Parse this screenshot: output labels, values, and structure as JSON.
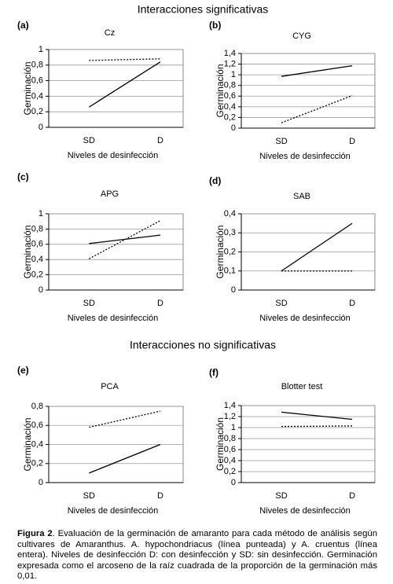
{
  "headings": [
    "Interacciones significativas",
    "Interacciones no significativas"
  ],
  "caption": {
    "label": "Figura 2",
    "text": ". Evaluación de la germinación de amaranto para cada método de análisis según cultivares de Amaranthus. A. hypochondriacus (línea punteada) y A. cruentus (línea entera). Niveles de desinfección D: con desinfección y SD: sin desinfección. Germinación expresada como el arcoseno de la raíz cuadrada de la  proporción de la germinación más 0,01."
  },
  "chart_data": [
    {
      "type": "line",
      "label": "(a)",
      "title": "Cz",
      "xlabel": "Niveles de desinfección",
      "ylabel": "Germinación",
      "categories": [
        "SD",
        "D"
      ],
      "grid": true,
      "ylim": [
        0,
        1
      ],
      "yticks": [
        0,
        {
          "value": 0.2,
          "label": "0,2"
        },
        {
          "value": 0.4,
          "label": "0,4"
        },
        {
          "value": 0.6,
          "label": "0,6"
        },
        {
          "value": 0.8,
          "label": "0,8"
        },
        1
      ],
      "series": [
        {
          "dash": "dotted",
          "color": "#000000",
          "values": [
            0.86,
            0.88
          ]
        },
        {
          "dash": "solid",
          "color": "#000000",
          "values": [
            0.26,
            0.84
          ]
        }
      ]
    },
    {
      "type": "line",
      "label": "(b)",
      "title": "CYG",
      "xlabel": "Niveles de desinfección",
      "ylabel": "Germinación",
      "categories": [
        "SD",
        "D"
      ],
      "grid": true,
      "ylim": [
        0,
        1.4
      ],
      "yticks": [
        0,
        {
          "value": 0.2,
          "label": "0,2"
        },
        {
          "value": 0.4,
          "label": "0,4"
        },
        {
          "value": 0.6,
          "label": "0,6"
        },
        {
          "value": 0.8,
          "label": "0,8"
        },
        1,
        {
          "value": 1.2,
          "label": "1,2"
        },
        {
          "value": 1.4,
          "label": "1,4"
        }
      ],
      "series": [
        {
          "dash": "dotted",
          "color": "#000000",
          "values": [
            0.1,
            0.61
          ]
        },
        {
          "dash": "solid",
          "color": "#000000",
          "values": [
            0.97,
            1.17
          ]
        }
      ]
    },
    {
      "type": "line",
      "label": "(c)",
      "title": "APG",
      "xlabel": "Niveles de desinfección",
      "ylabel": "Germinación",
      "categories": [
        "SD",
        "D"
      ],
      "grid": true,
      "ylim": [
        0,
        1
      ],
      "yticks": [
        0,
        {
          "value": 0.2,
          "label": "0,2"
        },
        {
          "value": 0.4,
          "label": "0,4"
        },
        {
          "value": 0.6,
          "label": "0,6"
        },
        {
          "value": 0.8,
          "label": "0,8"
        },
        1
      ],
      "series": [
        {
          "dash": "dotted",
          "color": "#000000",
          "values": [
            0.41,
            0.91
          ]
        },
        {
          "dash": "solid",
          "color": "#000000",
          "values": [
            0.61,
            0.72
          ]
        }
      ]
    },
    {
      "type": "line",
      "label": "(d)",
      "title": "SAB",
      "xlabel": "Niveles de desinfección",
      "ylabel": "Germinación",
      "categories": [
        "SD",
        "D"
      ],
      "grid": true,
      "ylim": [
        0,
        0.4
      ],
      "yticks": [
        0,
        {
          "value": 0.1,
          "label": "0,1"
        },
        {
          "value": 0.2,
          "label": "0,2"
        },
        {
          "value": 0.3,
          "label": "0,3"
        },
        {
          "value": 0.4,
          "label": "0,4"
        }
      ],
      "series": [
        {
          "dash": "dotted",
          "color": "#000000",
          "values": [
            0.1,
            0.1
          ]
        },
        {
          "dash": "solid",
          "color": "#000000",
          "values": [
            0.1,
            0.35
          ]
        }
      ]
    },
    {
      "type": "line",
      "label": "(e)",
      "title": "PCA",
      "xlabel": "Niveles de desinfección",
      "ylabel": "Germinación",
      "categories": [
        "SD",
        "D"
      ],
      "grid": true,
      "ylim": [
        0,
        0.8
      ],
      "yticks": [
        0,
        {
          "value": 0.2,
          "label": "0,2"
        },
        {
          "value": 0.4,
          "label": "0,4"
        },
        {
          "value": 0.6,
          "label": "0,6"
        },
        {
          "value": 0.8,
          "label": "0,8"
        }
      ],
      "series": [
        {
          "dash": "dotted",
          "color": "#000000",
          "values": [
            0.58,
            0.75
          ]
        },
        {
          "dash": "solid",
          "color": "#000000",
          "values": [
            0.1,
            0.4
          ]
        }
      ]
    },
    {
      "type": "line",
      "label": "(f)",
      "title": "Blotter test",
      "xlabel": "Niveles de desinfección",
      "ylabel": "Germinación",
      "categories": [
        "SD",
        "D"
      ],
      "grid": true,
      "ylim": [
        0,
        1.4
      ],
      "yticks": [
        0,
        {
          "value": 0.2,
          "label": "0,2"
        },
        {
          "value": 0.4,
          "label": "0,4"
        },
        {
          "value": 0.6,
          "label": "0,6"
        },
        {
          "value": 0.8,
          "label": "0,8"
        },
        1,
        {
          "value": 1.2,
          "label": "1,2"
        },
        {
          "value": 1.4,
          "label": "1,4"
        }
      ],
      "series": [
        {
          "dash": "dotted",
          "color": "#000000",
          "values": [
            1.02,
            1.03
          ]
        },
        {
          "dash": "solid",
          "color": "#000000",
          "values": [
            1.28,
            1.15
          ]
        }
      ]
    }
  ]
}
